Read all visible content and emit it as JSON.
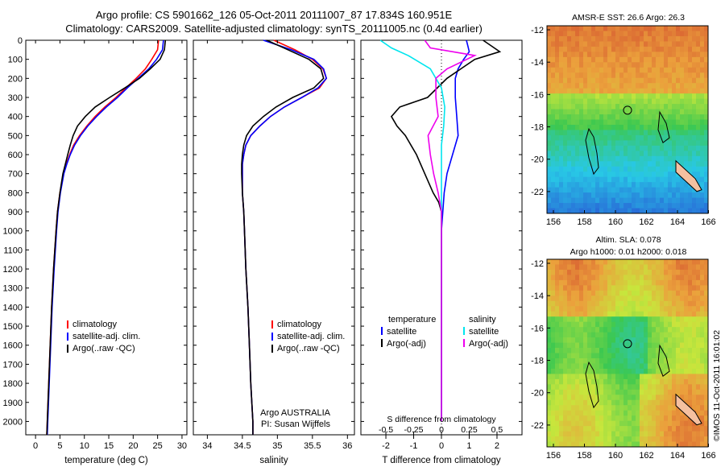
{
  "title": {
    "line1": "Argo profile: CS 5901662_126 05-Oct-2011 20111007_87 17.834S 160.951E",
    "line2": "Climatology: CARS2009. Satellite-adjusted climatology: synTS_20111005.nc (0.4d earlier)"
  },
  "colors": {
    "climatology": "#ff0000",
    "satellite": "#0000ff",
    "argo": "#000000",
    "salinity_satellite": "#00e5ee",
    "salinity_argo": "#ee00ee"
  },
  "depth_axis": {
    "ticks": [
      "0",
      "100",
      "200",
      "300",
      "400",
      "500",
      "600",
      "700",
      "800",
      "900",
      "1000",
      "1100",
      "1200",
      "1300",
      "1400",
      "1500",
      "1600",
      "1700",
      "1800",
      "1900",
      "2000"
    ],
    "range": [
      0,
      2070
    ]
  },
  "temperature_panel": {
    "xlabel": "temperature (deg C)",
    "xticks": [
      "0",
      "5",
      "10",
      "15",
      "20",
      "25",
      "30"
    ],
    "xlim": [
      -2,
      31
    ],
    "legend": [
      "climatology",
      "satellite-adj. clim.",
      "Argo(..raw -QC)"
    ]
  },
  "salinity_panel": {
    "xlabel": "salinity",
    "xticks": [
      "34",
      "34.5",
      "35",
      "35.5",
      "36"
    ],
    "xlim": [
      33.8,
      36.1
    ],
    "legend": [
      "climatology",
      "satellite-adj. clim.",
      "Argo(..raw -QC)"
    ],
    "credit1": "Argo AUSTRALIA",
    "credit2": "PI: Susan Wijffels"
  },
  "difference_panel": {
    "xlabel": "T difference from climatology",
    "s_label": "S difference from climatology",
    "t_ticks": [
      "-2",
      "-1",
      "0",
      "1",
      "2"
    ],
    "s_ticks": [
      "-0.5",
      "-0.25",
      "0",
      "0.25",
      "0.5"
    ],
    "xlim": [
      -2.9,
      2.9
    ],
    "legend_temperature": {
      "head": "temperature",
      "sat": "satellite",
      "argo": "Argo(-adj)"
    },
    "legend_salinity": {
      "head": "salinity",
      "sat": "satellite",
      "argo": "Argo(-adj)"
    }
  },
  "map_top": {
    "title": "AMSR-E SST: 26.6 Argo: 26.3",
    "yticks": [
      "-12",
      "-14",
      "-16",
      "-18",
      "-20",
      "-22"
    ],
    "xticks": [
      "156",
      "158",
      "160",
      "162",
      "164",
      "166"
    ]
  },
  "map_bottom": {
    "title1": "Altim. SLA: 0.078",
    "title2": "Argo h1000: 0.01 h2000: 0.018",
    "yticks": [
      "-12",
      "-14",
      "-16",
      "-18",
      "-20",
      "-22"
    ],
    "xticks": [
      "156",
      "158",
      "160",
      "162",
      "164",
      "166"
    ]
  },
  "footer": "©IMOS 11-Oct-2011 16:01:02",
  "chart_data": [
    {
      "type": "line",
      "panel": "temperature",
      "xlabel": "temperature (deg C)",
      "ylabel": "",
      "xlim": [
        -2,
        31
      ],
      "ylim": [
        2070,
        0
      ],
      "series": [
        {
          "name": "climatology",
          "depth": [
            0,
            50,
            100,
            150,
            200,
            250,
            300,
            350,
            400,
            450,
            500,
            550,
            600,
            650,
            700,
            800,
            900,
            1000,
            1200,
            1400,
            1600,
            1800,
            2000,
            2070
          ],
          "values": [
            25.2,
            25.0,
            23.8,
            22.5,
            20.6,
            18.5,
            16.5,
            14.2,
            12.2,
            10.5,
            9.0,
            7.8,
            7.0,
            6.3,
            5.7,
            5.0,
            4.5,
            4.2,
            3.7,
            3.3,
            3.0,
            2.7,
            2.4,
            2.3
          ]
        },
        {
          "name": "satellite-adj. clim.",
          "depth": [
            0,
            50,
            100,
            150,
            200,
            250,
            300,
            350,
            400,
            450,
            500,
            550,
            600,
            650,
            700,
            800,
            900,
            1000,
            1200,
            1400,
            1600,
            1800,
            2000,
            2070
          ],
          "values": [
            26.2,
            26.0,
            24.8,
            23.2,
            21.0,
            18.8,
            16.8,
            14.5,
            12.5,
            10.7,
            9.2,
            8.0,
            7.1,
            6.4,
            5.8,
            5.1,
            4.6,
            4.3,
            3.8,
            3.4,
            3.1,
            2.8,
            2.5,
            2.4
          ]
        },
        {
          "name": "Argo(..raw -QC)",
          "depth": [
            0,
            50,
            100,
            150,
            200,
            250,
            300,
            350,
            400,
            450,
            500,
            550,
            600,
            650,
            700,
            800,
            900,
            1000,
            1200,
            1400,
            1600,
            1800,
            2000,
            2070
          ],
          "values": [
            26.6,
            26.4,
            25.5,
            23.5,
            21.3,
            18.3,
            15.2,
            12.2,
            10.2,
            8.6,
            7.7,
            7.1,
            6.6,
            6.1,
            5.6,
            5.0,
            4.5,
            4.2,
            3.7,
            3.3,
            3.0,
            2.7,
            2.4,
            2.3
          ]
        }
      ]
    },
    {
      "type": "line",
      "panel": "salinity",
      "xlabel": "salinity",
      "ylabel": "",
      "xlim": [
        33.8,
        36.1
      ],
      "ylim": [
        2070,
        0
      ],
      "series": [
        {
          "name": "climatology",
          "depth": [
            0,
            50,
            100,
            150,
            200,
            250,
            300,
            350,
            400,
            450,
            500,
            550,
            600,
            650,
            700,
            800,
            900,
            1000,
            1200,
            1400,
            1600,
            1800,
            2000,
            2070
          ],
          "values": [
            34.95,
            35.25,
            35.5,
            35.65,
            35.7,
            35.6,
            35.35,
            35.1,
            34.9,
            34.75,
            34.62,
            34.55,
            34.52,
            34.5,
            34.5,
            34.5,
            34.52,
            34.53,
            34.55,
            34.58,
            34.6,
            34.62,
            34.65,
            34.65
          ]
        },
        {
          "name": "satellite-adj. clim.",
          "depth": [
            0,
            50,
            100,
            150,
            200,
            250,
            300,
            350,
            400,
            450,
            500,
            550,
            600,
            650,
            700,
            800,
            900,
            1000,
            1200,
            1400,
            1600,
            1800,
            2000,
            2070
          ],
          "values": [
            34.8,
            35.2,
            35.52,
            35.66,
            35.7,
            35.58,
            35.35,
            35.1,
            34.9,
            34.75,
            34.62,
            34.55,
            34.52,
            34.5,
            34.5,
            34.5,
            34.52,
            34.53,
            34.55,
            34.58,
            34.6,
            34.62,
            34.65,
            34.65
          ]
        },
        {
          "name": "Argo(..raw -QC)",
          "depth": [
            0,
            50,
            100,
            150,
            200,
            250,
            300,
            350,
            400,
            450,
            500,
            550,
            600,
            650,
            700,
            800,
            900,
            1000,
            1200,
            1400,
            1600,
            1800,
            2000,
            2070
          ],
          "values": [
            34.85,
            35.15,
            35.45,
            35.62,
            35.66,
            35.52,
            35.22,
            34.98,
            34.8,
            34.65,
            34.56,
            34.52,
            34.5,
            34.49,
            34.49,
            34.5,
            34.52,
            34.53,
            34.55,
            34.58,
            34.6,
            34.62,
            34.65,
            34.65
          ]
        }
      ]
    },
    {
      "type": "line",
      "panel": "difference",
      "xlabel": "T difference from climatology",
      "ylabel": "",
      "xlim": [
        -2.9,
        2.9
      ],
      "ylim": [
        2070,
        0
      ],
      "series": [
        {
          "name": "temperature satellite",
          "depth": [
            0,
            30,
            60,
            100,
            150,
            200,
            300,
            400,
            500,
            600,
            700,
            800,
            900,
            1000,
            2000
          ],
          "values": [
            0.9,
            0.95,
            1.0,
            0.8,
            0.6,
            0.5,
            0.5,
            0.55,
            0.6,
            0.4,
            0.2,
            0.1,
            0.05,
            0.0,
            0.0
          ]
        },
        {
          "name": "temperature Argo(-adj)",
          "depth": [
            0,
            30,
            60,
            100,
            150,
            200,
            300,
            350,
            400,
            450,
            500,
            600,
            700,
            800,
            850,
            900,
            1000,
            2000
          ],
          "values": [
            1.5,
            1.8,
            2.1,
            1.2,
            0.7,
            0.2,
            -0.5,
            -1.5,
            -1.8,
            -1.6,
            -1.3,
            -0.9,
            -0.6,
            -0.3,
            -0.1,
            0.0,
            0.0,
            0.0
          ]
        },
        {
          "name": "salinity satellite",
          "depth": [
            0,
            40,
            80,
            150,
            250,
            350,
            450,
            550,
            650,
            750,
            850,
            2000
          ],
          "values": [
            -0.55,
            -0.45,
            -0.3,
            -0.1,
            0.0,
            0.03,
            0.02,
            0.0,
            0.0,
            0.0,
            0.0,
            0.0
          ]
        },
        {
          "name": "salinity Argo(-adj)",
          "depth": [
            0,
            40,
            80,
            150,
            200,
            300,
            400,
            500,
            600,
            700,
            800,
            900,
            1000,
            2000
          ],
          "values": [
            -0.15,
            -0.1,
            0.3,
            0.05,
            -0.05,
            -0.05,
            -0.03,
            -0.12,
            -0.1,
            -0.07,
            -0.03,
            0.0,
            0.0,
            0.0
          ]
        }
      ]
    }
  ]
}
